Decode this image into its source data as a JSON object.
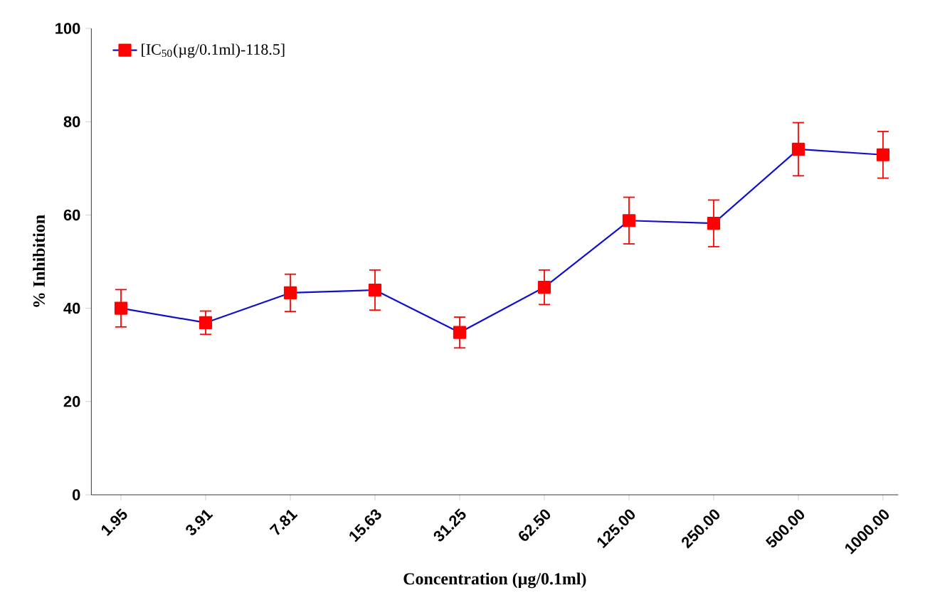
{
  "chart_data": {
    "type": "line",
    "xlabel": "Concentration (µg/0.1ml)",
    "ylabel": "% Inhibition",
    "categories": [
      "1.95",
      "3.91",
      "7.81",
      "15.63",
      "31.25",
      "62.50",
      "125.00",
      "250.00",
      "500.00",
      "1000.00"
    ],
    "series": [
      {
        "name": "[IC$_{50}$(µg/0.1ml)-118.5]",
        "color": "#ff0000",
        "values": [
          40,
          36.9,
          43.3,
          43.9,
          34.8,
          44.5,
          58.8,
          58.2,
          74.1,
          72.9
        ],
        "errors": [
          4,
          2.5,
          4,
          4.3,
          3.3,
          3.7,
          5,
          5,
          5.7,
          5
        ]
      }
    ],
    "ylim": [
      0,
      100
    ],
    "yticks": [
      0,
      20,
      40,
      60,
      80,
      100
    ],
    "grid": false,
    "legend": "top left",
    "marker": "square",
    "line_style": "solid"
  }
}
